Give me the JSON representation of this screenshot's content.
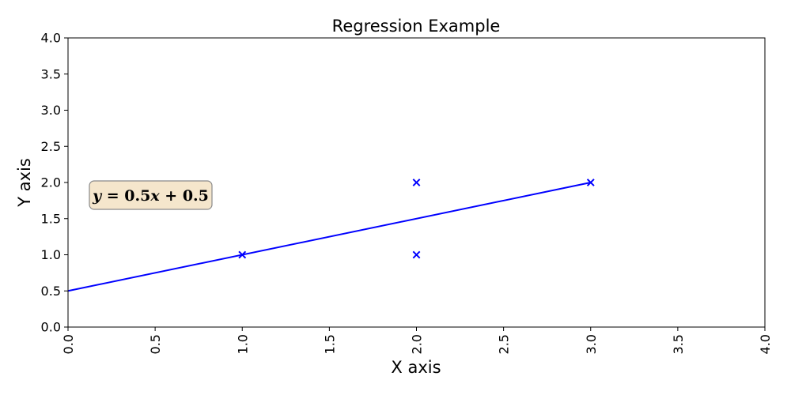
{
  "chart_data": {
    "type": "scatter",
    "title": "Regression Example",
    "xlabel": "X axis",
    "ylabel": "Y axis",
    "xlim": [
      0,
      4
    ],
    "ylim": [
      0,
      4
    ],
    "xticks": [
      "0.0",
      "0.5",
      "1.0",
      "1.5",
      "2.0",
      "2.5",
      "3.0",
      "3.5",
      "4.0"
    ],
    "yticks": [
      "0.0",
      "0.5",
      "1.0",
      "1.5",
      "2.0",
      "2.5",
      "3.0",
      "3.5",
      "4.0"
    ],
    "grid": false,
    "series": [
      {
        "kind": "scatter",
        "marker": "x",
        "color": "#0000ff",
        "points": [
          [
            1,
            1
          ],
          [
            2,
            1
          ],
          [
            2,
            2
          ],
          [
            3,
            2
          ]
        ]
      },
      {
        "kind": "line",
        "color": "#0000ff",
        "points": [
          [
            0,
            0.5
          ],
          [
            3,
            2
          ]
        ]
      }
    ],
    "annotation": {
      "text": "y = 0.5x + 0.5",
      "background": "#f5e6cc",
      "border": "#8a8a8a"
    }
  }
}
